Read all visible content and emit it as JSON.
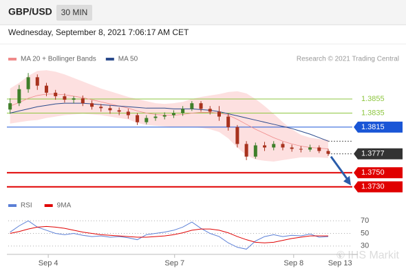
{
  "header": {
    "symbol": "GBP/USD",
    "interval": "30 MIN",
    "datetime": "Wednesday, September 8, 2021 7:06:17 AM CET"
  },
  "chart_data": [
    {
      "type": "candlestick",
      "credit": "Research © 2021 Trading Central",
      "x": [
        0,
        1,
        2,
        3,
        4,
        5,
        6,
        7,
        8,
        9,
        10,
        11,
        12,
        13,
        14,
        15,
        16,
        17,
        18,
        19,
        20,
        21,
        22,
        23,
        24,
        25,
        26,
        27,
        28,
        29,
        30,
        31,
        32,
        33,
        34,
        35
      ],
      "open": [
        1.384,
        1.3849,
        1.3869,
        1.3886,
        1.3874,
        1.3864,
        1.3859,
        1.3854,
        1.3856,
        1.3849,
        1.3844,
        1.3842,
        1.3839,
        1.3837,
        1.3832,
        1.3822,
        1.3828,
        1.383,
        1.3832,
        1.3835,
        1.3841,
        1.3849,
        1.3841,
        1.3837,
        1.383,
        1.3815,
        1.3791,
        1.3773,
        1.3789,
        1.3786,
        1.3791,
        1.3786,
        1.3784,
        1.3783,
        1.3786,
        1.3781
      ],
      "high": [
        1.3856,
        1.3875,
        1.3892,
        1.389,
        1.3878,
        1.3868,
        1.3863,
        1.3859,
        1.386,
        1.3853,
        1.3848,
        1.3846,
        1.3843,
        1.3841,
        1.3835,
        1.3832,
        1.3834,
        1.3836,
        1.3839,
        1.3845,
        1.3852,
        1.3852,
        1.3845,
        1.3845,
        1.3834,
        1.3818,
        1.3795,
        1.3793,
        1.3794,
        1.3795,
        1.3794,
        1.379,
        1.3788,
        1.379,
        1.3789,
        1.3784
      ],
      "low": [
        1.3834,
        1.3845,
        1.3864,
        1.3868,
        1.3859,
        1.3854,
        1.385,
        1.3849,
        1.3845,
        1.384,
        1.3837,
        1.3834,
        1.3832,
        1.3827,
        1.3818,
        1.3819,
        1.3824,
        1.3826,
        1.3828,
        1.3831,
        1.3838,
        1.3837,
        1.3833,
        1.3824,
        1.381,
        1.3786,
        1.3768,
        1.377,
        1.3781,
        1.3782,
        1.3782,
        1.378,
        1.3779,
        1.378,
        1.3778,
        1.3774
      ],
      "close": [
        1.3849,
        1.3869,
        1.3886,
        1.3874,
        1.3864,
        1.3859,
        1.3854,
        1.3856,
        1.3849,
        1.3844,
        1.3842,
        1.3839,
        1.3837,
        1.3832,
        1.3822,
        1.3828,
        1.383,
        1.3832,
        1.3835,
        1.3841,
        1.3849,
        1.3841,
        1.3837,
        1.383,
        1.3815,
        1.3791,
        1.3773,
        1.3789,
        1.3786,
        1.3791,
        1.3786,
        1.3784,
        1.3783,
        1.3786,
        1.3781,
        1.3777
      ],
      "up_color": "#3f7f2a",
      "down_color": "#a8321e",
      "series": [
        {
          "name": "MA 20 + Bollinger Bands",
          "color": "#f08a8a",
          "band_color": "#fde0e0",
          "values": [
            1.3845,
            1.385,
            1.3856,
            1.386,
            1.3862,
            1.3862,
            1.3861,
            1.3859,
            1.3857,
            1.3854,
            1.3851,
            1.3848,
            1.3845,
            1.3842,
            1.3838,
            1.3835,
            1.3833,
            1.3832,
            1.3832,
            1.3833,
            1.3835,
            1.3836,
            1.3836,
            1.3835,
            1.3832,
            1.3826,
            1.3819,
            1.3812,
            1.3806,
            1.38,
            1.3795,
            1.3791,
            1.3788,
            1.3786,
            1.3785,
            1.3784
          ],
          "upper": [
            1.387,
            1.3878,
            1.3888,
            1.3895,
            1.3896,
            1.3894,
            1.389,
            1.3885,
            1.388,
            1.3875,
            1.387,
            1.3866,
            1.3862,
            1.3858,
            1.3855,
            1.3852,
            1.3849,
            1.3848,
            1.3849,
            1.3851,
            1.3855,
            1.3858,
            1.386,
            1.3862,
            1.3865,
            1.3866,
            1.3863,
            1.3855,
            1.3845,
            1.3834,
            1.3822,
            1.3812,
            1.3804,
            1.38,
            1.3798,
            1.3797
          ],
          "lower": [
            1.382,
            1.3822,
            1.3824,
            1.3825,
            1.3828,
            1.383,
            1.3832,
            1.3833,
            1.3834,
            1.3833,
            1.3832,
            1.383,
            1.3828,
            1.3826,
            1.3821,
            1.3818,
            1.3817,
            1.3816,
            1.3815,
            1.3815,
            1.3815,
            1.3814,
            1.3812,
            1.3808,
            1.3799,
            1.3786,
            1.3775,
            1.3769,
            1.3767,
            1.3766,
            1.3768,
            1.377,
            1.3772,
            1.3772,
            1.3772,
            1.3771
          ]
        },
        {
          "name": "MA 50",
          "color": "#2a4a8c",
          "values": [
            1.3835,
            1.3838,
            1.3841,
            1.3844,
            1.3846,
            1.3848,
            1.3849,
            1.3849,
            1.3849,
            1.3848,
            1.3847,
            1.3846,
            1.3845,
            1.3844,
            1.3843,
            1.3842,
            1.3842,
            1.3842,
            1.3841,
            1.3841,
            1.3841,
            1.384,
            1.3839,
            1.3837,
            1.3834,
            1.3831,
            1.3828,
            1.3825,
            1.3822,
            1.3819,
            1.3816,
            1.3813,
            1.3809,
            1.3805,
            1.38,
            1.3795
          ]
        }
      ],
      "levels": {
        "values": [
          1.3855,
          1.3835,
          1.3815,
          1.3777,
          {
            "value": 1.375,
            "label": "1.3750"
          },
          {
            "value": 1.373,
            "label": "1.3730"
          }
        ],
        "colors": [
          "#8dc63f",
          "#8dc63f",
          "#1a56d6",
          "#333333",
          "#e00000",
          "#e00000"
        ],
        "styles": [
          "text",
          "text",
          "box",
          "current",
          "box",
          "box"
        ]
      },
      "xlim": [
        -0.2,
        37.5
      ],
      "ylim": [
        1.3717,
        1.3903
      ]
    },
    {
      "type": "line",
      "x": [
        0,
        1,
        2,
        3,
        4,
        5,
        6,
        7,
        8,
        9,
        10,
        11,
        12,
        13,
        14,
        15,
        16,
        17,
        18,
        19,
        20,
        21,
        22,
        23,
        24,
        25,
        26,
        27,
        28,
        29,
        30,
        31,
        32,
        33,
        34,
        35
      ],
      "series": [
        {
          "name": "RSI",
          "color": "#5b7fd6",
          "values": [
            52,
            62,
            70,
            60,
            55,
            50,
            48,
            50,
            47,
            45,
            46,
            44,
            45,
            43,
            40,
            48,
            50,
            52,
            55,
            60,
            68,
            58,
            50,
            45,
            35,
            28,
            25,
            38,
            45,
            48,
            45,
            47,
            46,
            49,
            44,
            45
          ]
        },
        {
          "name": "9MA",
          "color": "#e00000",
          "values": [
            50,
            53,
            57,
            60,
            61,
            60,
            58,
            55,
            52,
            50,
            48,
            47,
            46,
            45,
            44,
            44,
            45,
            46,
            48,
            51,
            55,
            57,
            57,
            55,
            51,
            45,
            40,
            36,
            35,
            36,
            39,
            42,
            44,
            46,
            46,
            46
          ]
        }
      ],
      "xlim": [
        -0.2,
        37.5
      ],
      "ylim": [
        20,
        80
      ],
      "yticks": [
        30,
        50,
        70
      ],
      "grid": true,
      "xticks": [
        {
          "value": 4.2,
          "label": "Sep 4"
        },
        {
          "value": 18.1,
          "label": "Sep 7"
        },
        {
          "value": 31.2,
          "label": "Sep 8"
        },
        {
          "value": 36.3,
          "label": "Sep 13"
        }
      ]
    }
  ],
  "watermark": "© IHS Markit"
}
